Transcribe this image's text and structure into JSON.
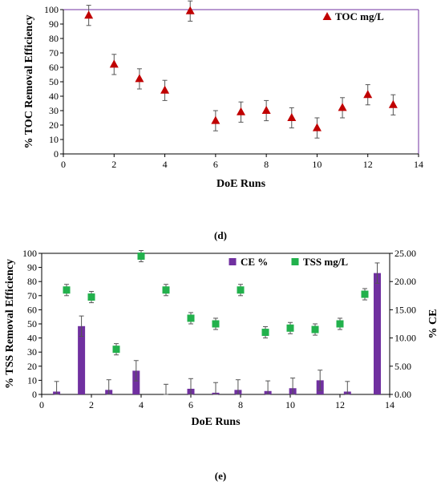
{
  "chart_data": [
    {
      "type": "scatter",
      "panel_label": "(d)",
      "title": "",
      "xlabel": "DoE Runs",
      "ylabel": "% TOC Removal Efficiency",
      "xlim": [
        0,
        14
      ],
      "ylim": [
        0,
        100
      ],
      "x_ticks": [
        "0",
        "2",
        "4",
        "6",
        "8",
        "10",
        "12",
        "14"
      ],
      "y_ticks": [
        "0",
        "10",
        "20",
        "30",
        "40",
        "50",
        "60",
        "70",
        "80",
        "90",
        "100"
      ],
      "legend_position": "top-right",
      "grid": false,
      "series": [
        {
          "name": "TOC mg/L",
          "marker": "triangle",
          "color": "#c00000",
          "x": [
            1,
            2,
            3,
            4,
            5,
            6,
            7,
            8,
            9,
            10,
            11,
            12,
            13
          ],
          "y": [
            96,
            62,
            52,
            44,
            99,
            23,
            29,
            30,
            25,
            18,
            32,
            41,
            34
          ],
          "error": [
            7,
            7,
            7,
            7,
            7,
            7,
            7,
            7,
            7,
            7,
            7,
            7,
            7
          ]
        }
      ]
    },
    {
      "type": "bar+scatter",
      "panel_label": "(e)",
      "title": "",
      "xlabel": "DoE Runs",
      "ylabel": "% TSS Removal Efficiency",
      "y2label": "% CE",
      "xlim": [
        0,
        14
      ],
      "ylim": [
        0,
        100
      ],
      "y2lim": [
        0,
        25
      ],
      "x_ticks": [
        "0",
        "2",
        "4",
        "6",
        "8",
        "10",
        "12",
        "14"
      ],
      "y_ticks": [
        "0",
        "10",
        "20",
        "30",
        "40",
        "50",
        "60",
        "70",
        "80",
        "90",
        "100"
      ],
      "y2_ticks": [
        "0.00",
        "5.00",
        "10.00",
        "15.00",
        "20.00",
        "25.00"
      ],
      "legend_position": "top-right",
      "grid": false,
      "series": [
        {
          "name": "CE %",
          "kind": "bar",
          "axis": "right",
          "color": "#7030a0",
          "x": [
            0.6,
            1.6,
            2.7,
            3.8,
            5,
            6,
            7,
            7.9,
            9.1,
            10.1,
            11.2,
            12.3,
            13.5
          ],
          "y": [
            0.5,
            12.1,
            0.8,
            4.2,
            0.0,
            1.0,
            0.3,
            0.8,
            0.6,
            1.1,
            2.5,
            0.5,
            21.5
          ],
          "error": [
            1.8,
            1.8,
            1.8,
            1.8,
            1.8,
            1.8,
            1.8,
            1.8,
            1.8,
            1.8,
            1.8,
            1.8,
            1.8
          ]
        },
        {
          "name": "TSS mg/L",
          "kind": "scatter",
          "marker": "square",
          "axis": "left",
          "color": "#22b14c",
          "x": [
            1,
            2,
            3,
            4,
            5,
            6,
            7,
            8,
            9,
            10,
            11,
            12,
            13
          ],
          "y": [
            74,
            69,
            32,
            98,
            74,
            54,
            50,
            74,
            44,
            47,
            46,
            50,
            71
          ],
          "error": [
            4,
            4,
            4,
            4,
            4,
            4,
            4,
            4,
            4,
            4,
            4,
            4,
            4
          ]
        }
      ]
    }
  ]
}
